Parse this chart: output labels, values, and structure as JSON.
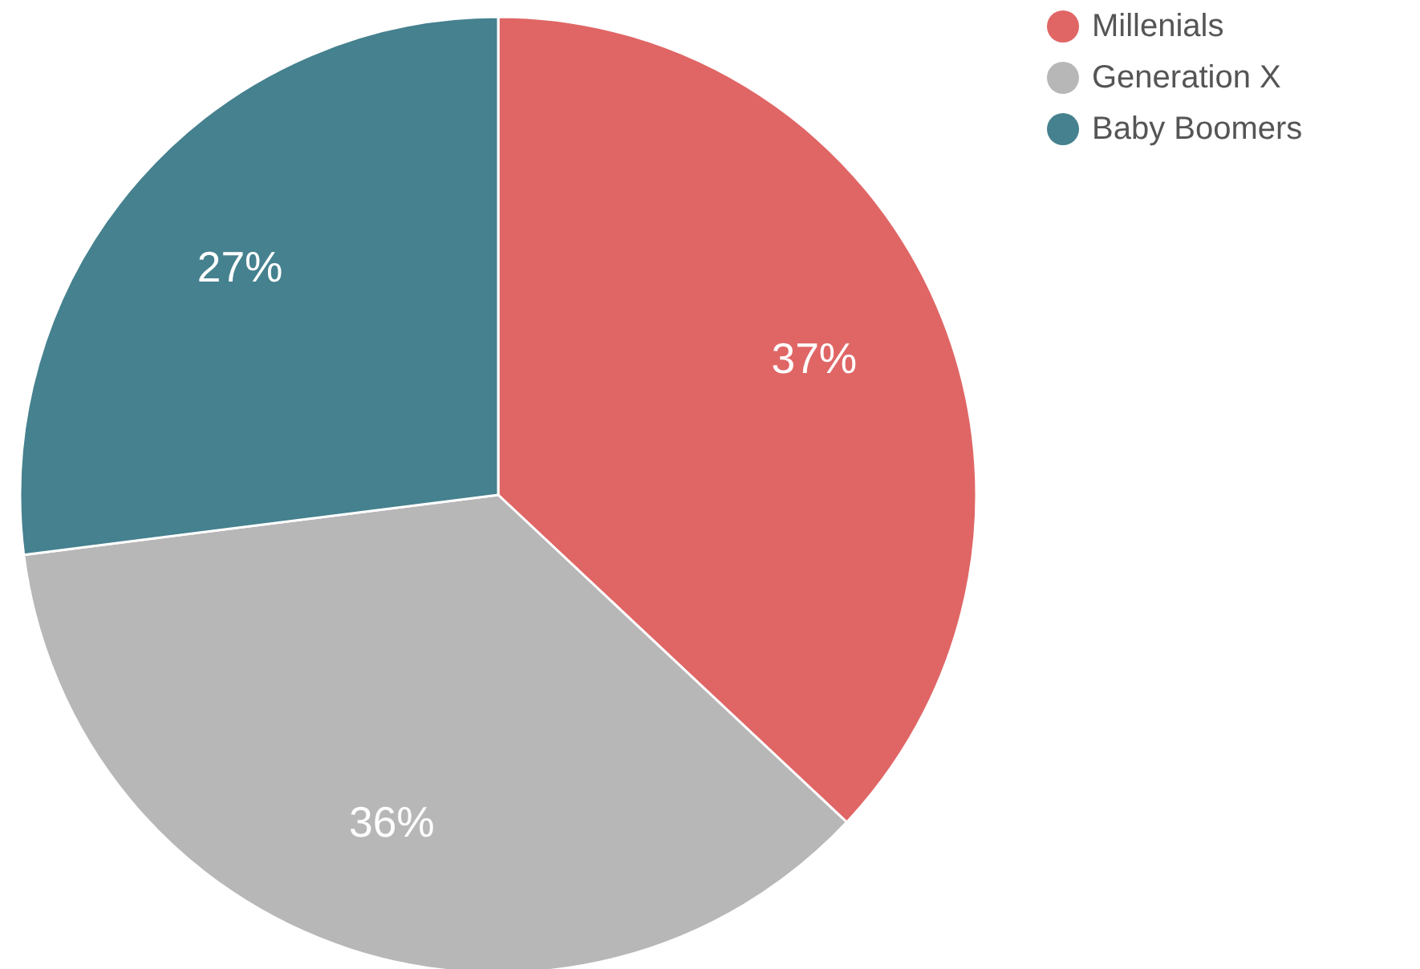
{
  "chart_data": {
    "type": "pie",
    "categories": [
      "Millenials",
      "Generation X",
      "Baby Boomers"
    ],
    "values": [
      37,
      36,
      27
    ],
    "colors": [
      "#e06666",
      "#b7b7b7",
      "#45818e"
    ],
    "value_labels": [
      "37%",
      "36%",
      "27%"
    ],
    "legend": "top right"
  }
}
